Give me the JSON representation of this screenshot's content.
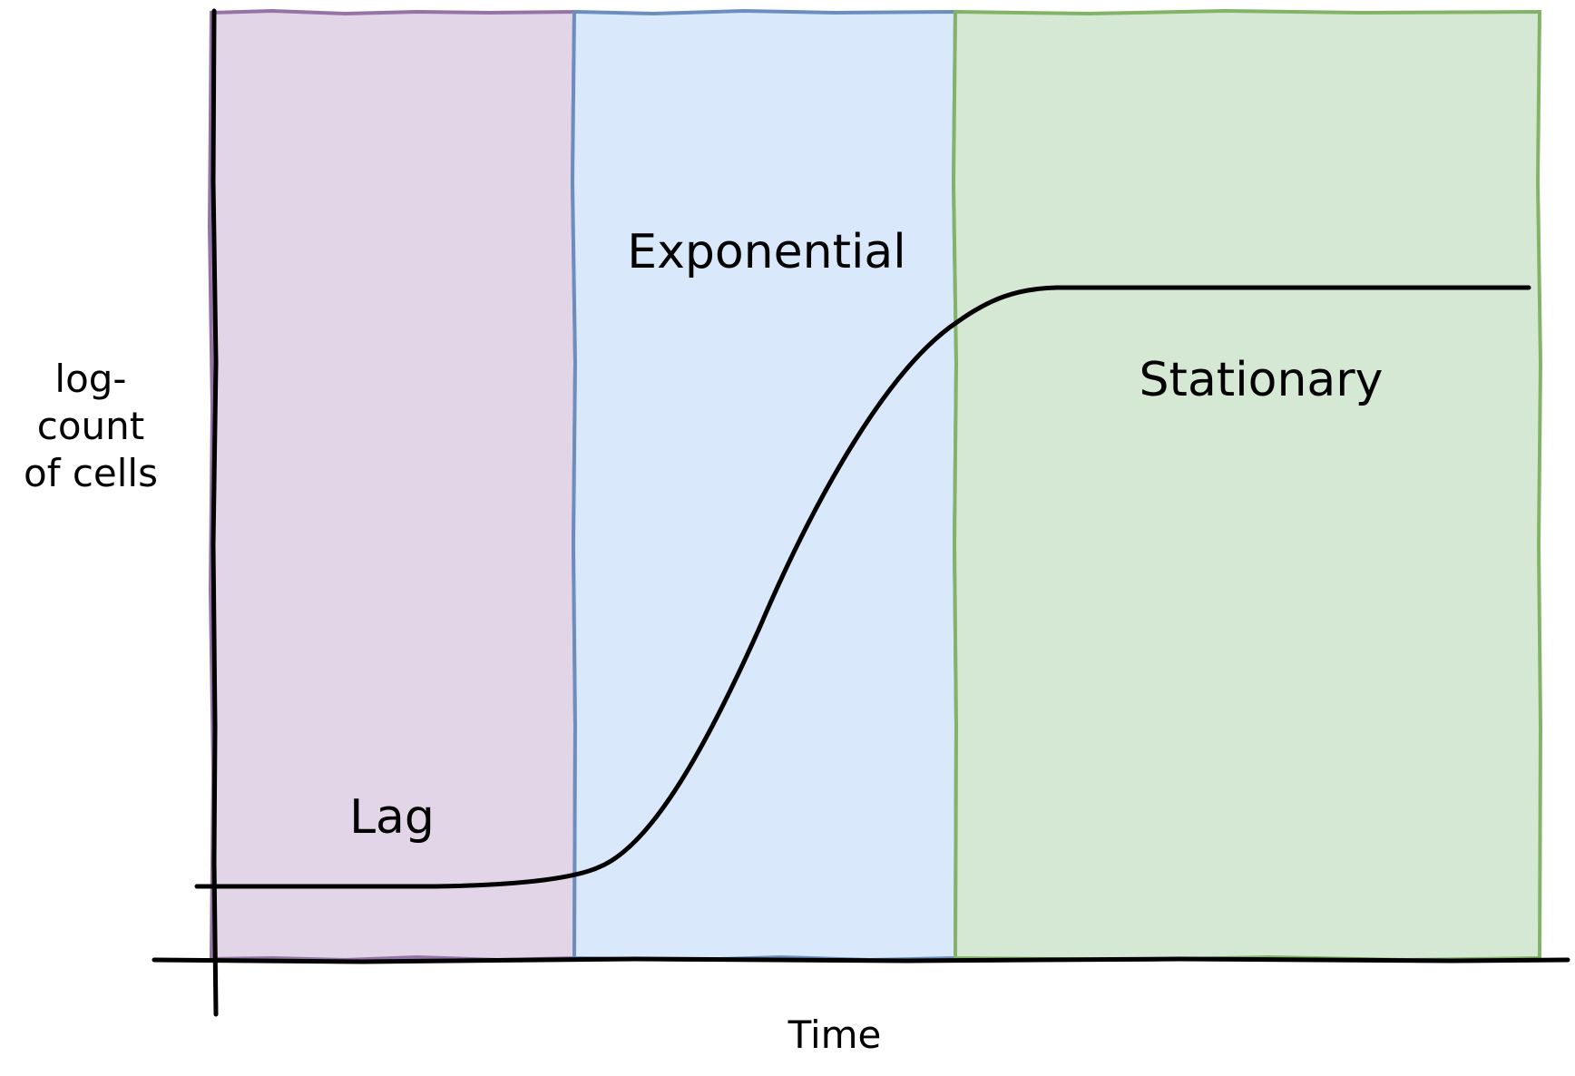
{
  "labels": {
    "y_axis_lines": [
      "log-",
      "count",
      "of cells"
    ],
    "x_axis": "Time",
    "phases": {
      "lag": "Lag",
      "exponential": "Exponential",
      "stationary": "Stationary"
    }
  },
  "colors": {
    "lag_fill": "#e1d5e7",
    "lag_border": "#9673a6",
    "exponential_fill": "#dae8fc",
    "exponential_border": "#6c8ebf",
    "stationary_fill": "#d5e8d4",
    "stationary_border": "#82b366",
    "line": "#000000"
  }
}
